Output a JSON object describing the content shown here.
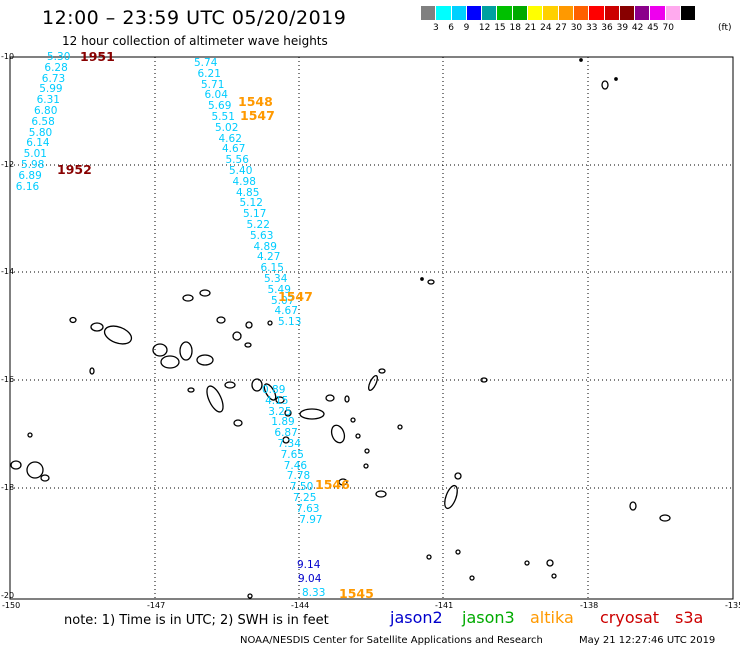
{
  "title": "12:00 – 23:59 UTC 05/20/2019",
  "subtitle": "12 hour collection of altimeter wave heights",
  "legend": {
    "colors": [
      "#808080",
      "#00ffff",
      "#00d0ff",
      "#0000ff",
      "#00a0a0",
      "#00c000",
      "#00aa00",
      "#ffff00",
      "#ffd000",
      "#ff9900",
      "#ff6000",
      "#ff0000",
      "#cc0000",
      "#880000",
      "#8b008b",
      "#ee00ee",
      "#ffaaee",
      "#000000"
    ],
    "labels": [
      "3",
      "6",
      "9",
      "12",
      "15",
      "18",
      "21",
      "24",
      "27",
      "30",
      "33",
      "36",
      "39",
      "42",
      "45",
      "70",
      "(ft)"
    ]
  },
  "axes": {
    "lat_labels": [
      "-10",
      "-12",
      "-14",
      "-16",
      "-18",
      "-20"
    ],
    "lon_labels": [
      "-150",
      "-147",
      "-144",
      "-141",
      "-138",
      "-135"
    ]
  },
  "tracks": [
    {
      "color": "#00ccff",
      "values": [
        "5.30",
        "6.28",
        "6.73",
        "5.99",
        "6.31",
        "6.80",
        "6.58",
        "5.80",
        "6.14",
        "5.01",
        "5.98",
        "6.89",
        "6.16"
      ]
    },
    {
      "color": "#00ccff",
      "values": [
        "5.74",
        "6.21",
        "5.71",
        "6.04",
        "5.69",
        "5.51",
        "5.02",
        "4.62",
        "4.67",
        "5.56",
        "5.40",
        "4.98",
        "4.85",
        "5.12",
        "5.17",
        "5.22",
        "5.63",
        "4.89",
        "4.27",
        "6.15",
        "5.34",
        "5.49",
        "5.07",
        "4.67",
        "5.13"
      ]
    },
    {
      "color": "#00ccff",
      "values": [
        "0.89",
        "4.15",
        "3.25",
        "1.89",
        "6.87",
        "7.34",
        "7.65",
        "7.46",
        "7.78",
        "7.50",
        "7.25",
        "7.63",
        "7.97"
      ]
    },
    {
      "color": "#0000cc",
      "values": [
        "9.14",
        "9.04"
      ]
    },
    {
      "color": "#00ccff",
      "values": [
        "8.33"
      ]
    }
  ],
  "times": [
    {
      "text": "1951",
      "color": "#880000"
    },
    {
      "text": "1952",
      "color": "#880000"
    },
    {
      "text": "1548",
      "color": "#ff9900"
    },
    {
      "text": "1547",
      "color": "#ff9900"
    },
    {
      "text": "1547",
      "color": "#ff9900"
    },
    {
      "text": "1546",
      "color": "#ff9900"
    },
    {
      "text": "1545",
      "color": "#ff9900"
    }
  ],
  "note": "note: 1) Time is in UTC; 2) SWH is in feet",
  "satellites": [
    {
      "name": "jason2",
      "color": "#0000cc"
    },
    {
      "name": "jason3",
      "color": "#00aa00"
    },
    {
      "name": "altika",
      "color": "#ff9900"
    },
    {
      "name": "cryosat",
      "color": "#cc0000"
    },
    {
      "name": "s3a",
      "color": "#cc0000"
    }
  ],
  "credit": "NOAA/NESDIS Center for Satellite Applications and Research",
  "timestamp": "May 21 12:27:46 UTC 2019"
}
